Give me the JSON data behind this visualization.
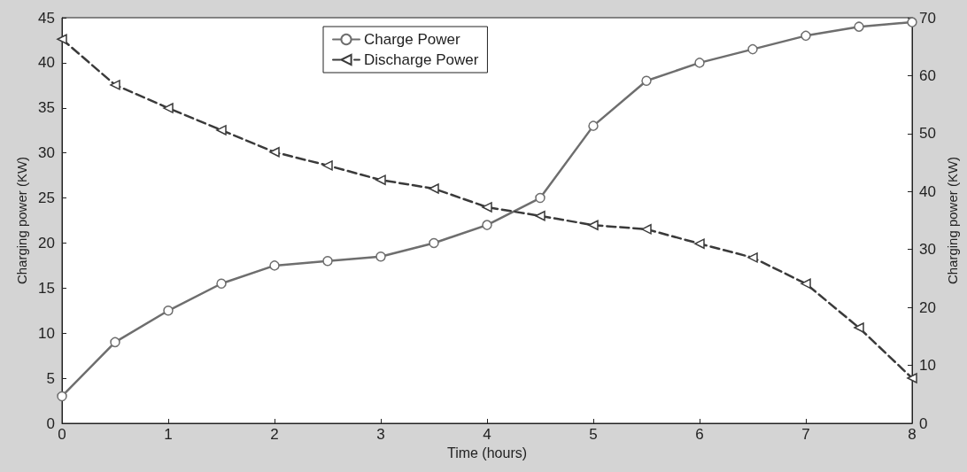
{
  "chart_data": {
    "type": "line",
    "xlabel": "Time (hours)",
    "ylabel": "Charging power (KW)",
    "y2label": "Charging power (KW)",
    "x": [
      0,
      0.5,
      1,
      1.5,
      2,
      2.5,
      3,
      3.5,
      4,
      4.5,
      5,
      5.5,
      6,
      6.5,
      7,
      7.5,
      8
    ],
    "xlim": [
      0,
      8
    ],
    "xticks": [
      0,
      1,
      2,
      3,
      4,
      5,
      6,
      7,
      8
    ],
    "ylim": [
      0,
      45
    ],
    "yticks": [
      0,
      5,
      10,
      15,
      20,
      25,
      30,
      35,
      40,
      45
    ],
    "y2lim": [
      0,
      70
    ],
    "y2ticks": [
      0,
      10,
      20,
      30,
      40,
      50,
      60,
      70
    ],
    "legend": "top",
    "grid": false,
    "series": [
      {
        "name": "Charge Power",
        "color": "#6e6e6e",
        "marker": "circle",
        "line_style": "solid",
        "values": [
          3,
          9,
          12.5,
          15.5,
          17.5,
          18,
          18.5,
          20,
          22,
          25,
          33,
          38,
          40,
          41.5,
          43,
          44,
          44.5
        ]
      },
      {
        "name": "Discharge Power",
        "color": "#3a3a3a",
        "marker": "triangle",
        "line_style": "dashed",
        "axis": "y2",
        "values": [
          66.3,
          58.4,
          54.4,
          50.6,
          46.8,
          44.5,
          42,
          40.5,
          37.3,
          35.8,
          34.2,
          33.5,
          31,
          28.6,
          24.1,
          16.5,
          7.8
        ]
      }
    ]
  }
}
